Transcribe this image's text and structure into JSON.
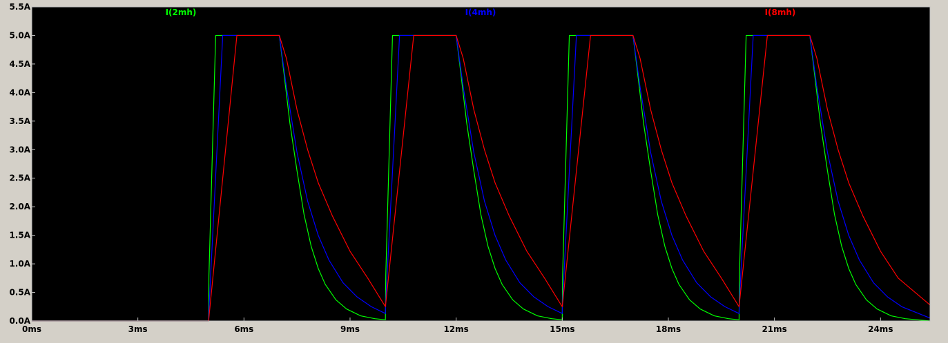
{
  "chart_data": {
    "type": "line",
    "title": "",
    "xlabel": "",
    "ylabel": "",
    "xlim": [
      0,
      25.4
    ],
    "ylim": [
      0,
      5.5
    ],
    "grid": false,
    "legend_placement": "top",
    "background": "#000000",
    "axis_color": "#c0c0c0",
    "label_color": "#000000",
    "x_ticks": [
      {
        "value": 0,
        "label": "0ms"
      },
      {
        "value": 3,
        "label": "3ms"
      },
      {
        "value": 6,
        "label": "6ms"
      },
      {
        "value": 9,
        "label": "9ms"
      },
      {
        "value": 12,
        "label": "12ms"
      },
      {
        "value": 15,
        "label": "15ms"
      },
      {
        "value": 18,
        "label": "18ms"
      },
      {
        "value": 21,
        "label": "21ms"
      },
      {
        "value": 24,
        "label": "24ms"
      }
    ],
    "y_ticks": [
      {
        "value": 0.0,
        "label": "0.0A"
      },
      {
        "value": 0.5,
        "label": "0.5A"
      },
      {
        "value": 1.0,
        "label": "1.0A"
      },
      {
        "value": 1.5,
        "label": "1.5A"
      },
      {
        "value": 2.0,
        "label": "2.0A"
      },
      {
        "value": 2.5,
        "label": "2.5A"
      },
      {
        "value": 3.0,
        "label": "3.0A"
      },
      {
        "value": 3.5,
        "label": "3.5A"
      },
      {
        "value": 4.0,
        "label": "4.0A"
      },
      {
        "value": 4.5,
        "label": "4.5A"
      },
      {
        "value": 5.0,
        "label": "5.0A"
      },
      {
        "value": 5.5,
        "label": "5.5A"
      }
    ],
    "series": [
      {
        "name": "I(2mh)",
        "color": "#00ff00",
        "x": [
          0,
          5.0,
          5.01,
          5.2,
          7.0,
          7.1,
          7.3,
          7.5,
          7.7,
          7.9,
          8.1,
          8.3,
          8.6,
          8.9,
          9.3,
          9.7,
          10.0,
          10.01,
          10.2,
          12.0,
          12.1,
          12.3,
          12.5,
          12.7,
          12.9,
          13.1,
          13.3,
          13.6,
          13.9,
          14.3,
          14.7,
          15.0,
          15.01,
          15.2,
          17.0,
          17.1,
          17.3,
          17.5,
          17.7,
          17.9,
          18.1,
          18.3,
          18.6,
          18.9,
          19.3,
          19.7,
          20.0,
          20.01,
          20.2,
          22.0,
          22.1,
          22.3,
          22.5,
          22.7,
          22.9,
          23.1,
          23.3,
          23.6,
          23.9,
          24.3,
          24.7,
          25.4
        ],
        "y": [
          0,
          0,
          0.8,
          5.0,
          5.0,
          4.5,
          3.46,
          2.63,
          1.86,
          1.31,
          0.92,
          0.64,
          0.37,
          0.21,
          0.09,
          0.04,
          0.02,
          0.8,
          5.0,
          5.0,
          4.5,
          3.46,
          2.63,
          1.86,
          1.31,
          0.92,
          0.64,
          0.37,
          0.21,
          0.09,
          0.04,
          0.02,
          0.8,
          5.0,
          5.0,
          4.5,
          3.46,
          2.63,
          1.86,
          1.31,
          0.92,
          0.64,
          0.37,
          0.21,
          0.09,
          0.04,
          0.02,
          0.8,
          5.0,
          5.0,
          4.5,
          3.46,
          2.63,
          1.86,
          1.31,
          0.92,
          0.64,
          0.37,
          0.21,
          0.09,
          0.04,
          0.0
        ]
      },
      {
        "name": "I(4mh)",
        "color": "#0000ff",
        "x": [
          0,
          5.0,
          5.01,
          5.4,
          7.0,
          7.2,
          7.5,
          7.8,
          8.1,
          8.4,
          8.8,
          9.2,
          9.6,
          10.0,
          10.01,
          10.4,
          12.0,
          12.2,
          12.5,
          12.8,
          13.1,
          13.4,
          13.8,
          14.2,
          14.6,
          15.0,
          15.01,
          15.4,
          17.0,
          17.2,
          17.5,
          17.8,
          18.1,
          18.4,
          18.8,
          19.2,
          19.6,
          20.0,
          20.01,
          20.4,
          22.0,
          22.2,
          22.5,
          22.8,
          23.1,
          23.4,
          23.8,
          24.2,
          24.6,
          25.4
        ],
        "y": [
          0,
          0,
          0.2,
          5.0,
          5.0,
          4.1,
          2.95,
          2.1,
          1.5,
          1.07,
          0.67,
          0.42,
          0.25,
          0.13,
          0.35,
          5.0,
          5.0,
          4.1,
          2.95,
          2.1,
          1.5,
          1.07,
          0.67,
          0.42,
          0.25,
          0.13,
          0.35,
          5.0,
          5.0,
          4.1,
          2.95,
          2.1,
          1.5,
          1.07,
          0.67,
          0.42,
          0.25,
          0.13,
          0.35,
          5.0,
          5.0,
          4.1,
          2.95,
          2.1,
          1.5,
          1.07,
          0.67,
          0.42,
          0.25,
          0.05
        ]
      },
      {
        "name": "I(8mh)",
        "color": "#ff0000",
        "x": [
          0,
          5.0,
          5.8,
          7.0,
          7.2,
          7.5,
          7.8,
          8.1,
          8.5,
          9.0,
          9.5,
          10.0,
          10.8,
          12.0,
          12.2,
          12.5,
          12.8,
          13.1,
          13.5,
          14.0,
          14.5,
          15.0,
          15.8,
          17.0,
          17.2,
          17.5,
          17.8,
          18.1,
          18.5,
          19.0,
          19.5,
          20.0,
          20.8,
          22.0,
          22.2,
          22.5,
          22.8,
          23.1,
          23.5,
          24.0,
          24.5,
          25.4
        ],
        "y": [
          0,
          0,
          5.0,
          5.0,
          4.6,
          3.7,
          3.0,
          2.42,
          1.84,
          1.22,
          0.75,
          0.25,
          5.0,
          5.0,
          4.6,
          3.7,
          3.0,
          2.42,
          1.84,
          1.22,
          0.75,
          0.25,
          5.0,
          5.0,
          4.6,
          3.7,
          3.0,
          2.42,
          1.84,
          1.22,
          0.75,
          0.25,
          5.0,
          5.0,
          4.6,
          3.7,
          3.0,
          2.42,
          1.84,
          1.22,
          0.75,
          0.28
        ]
      }
    ]
  }
}
